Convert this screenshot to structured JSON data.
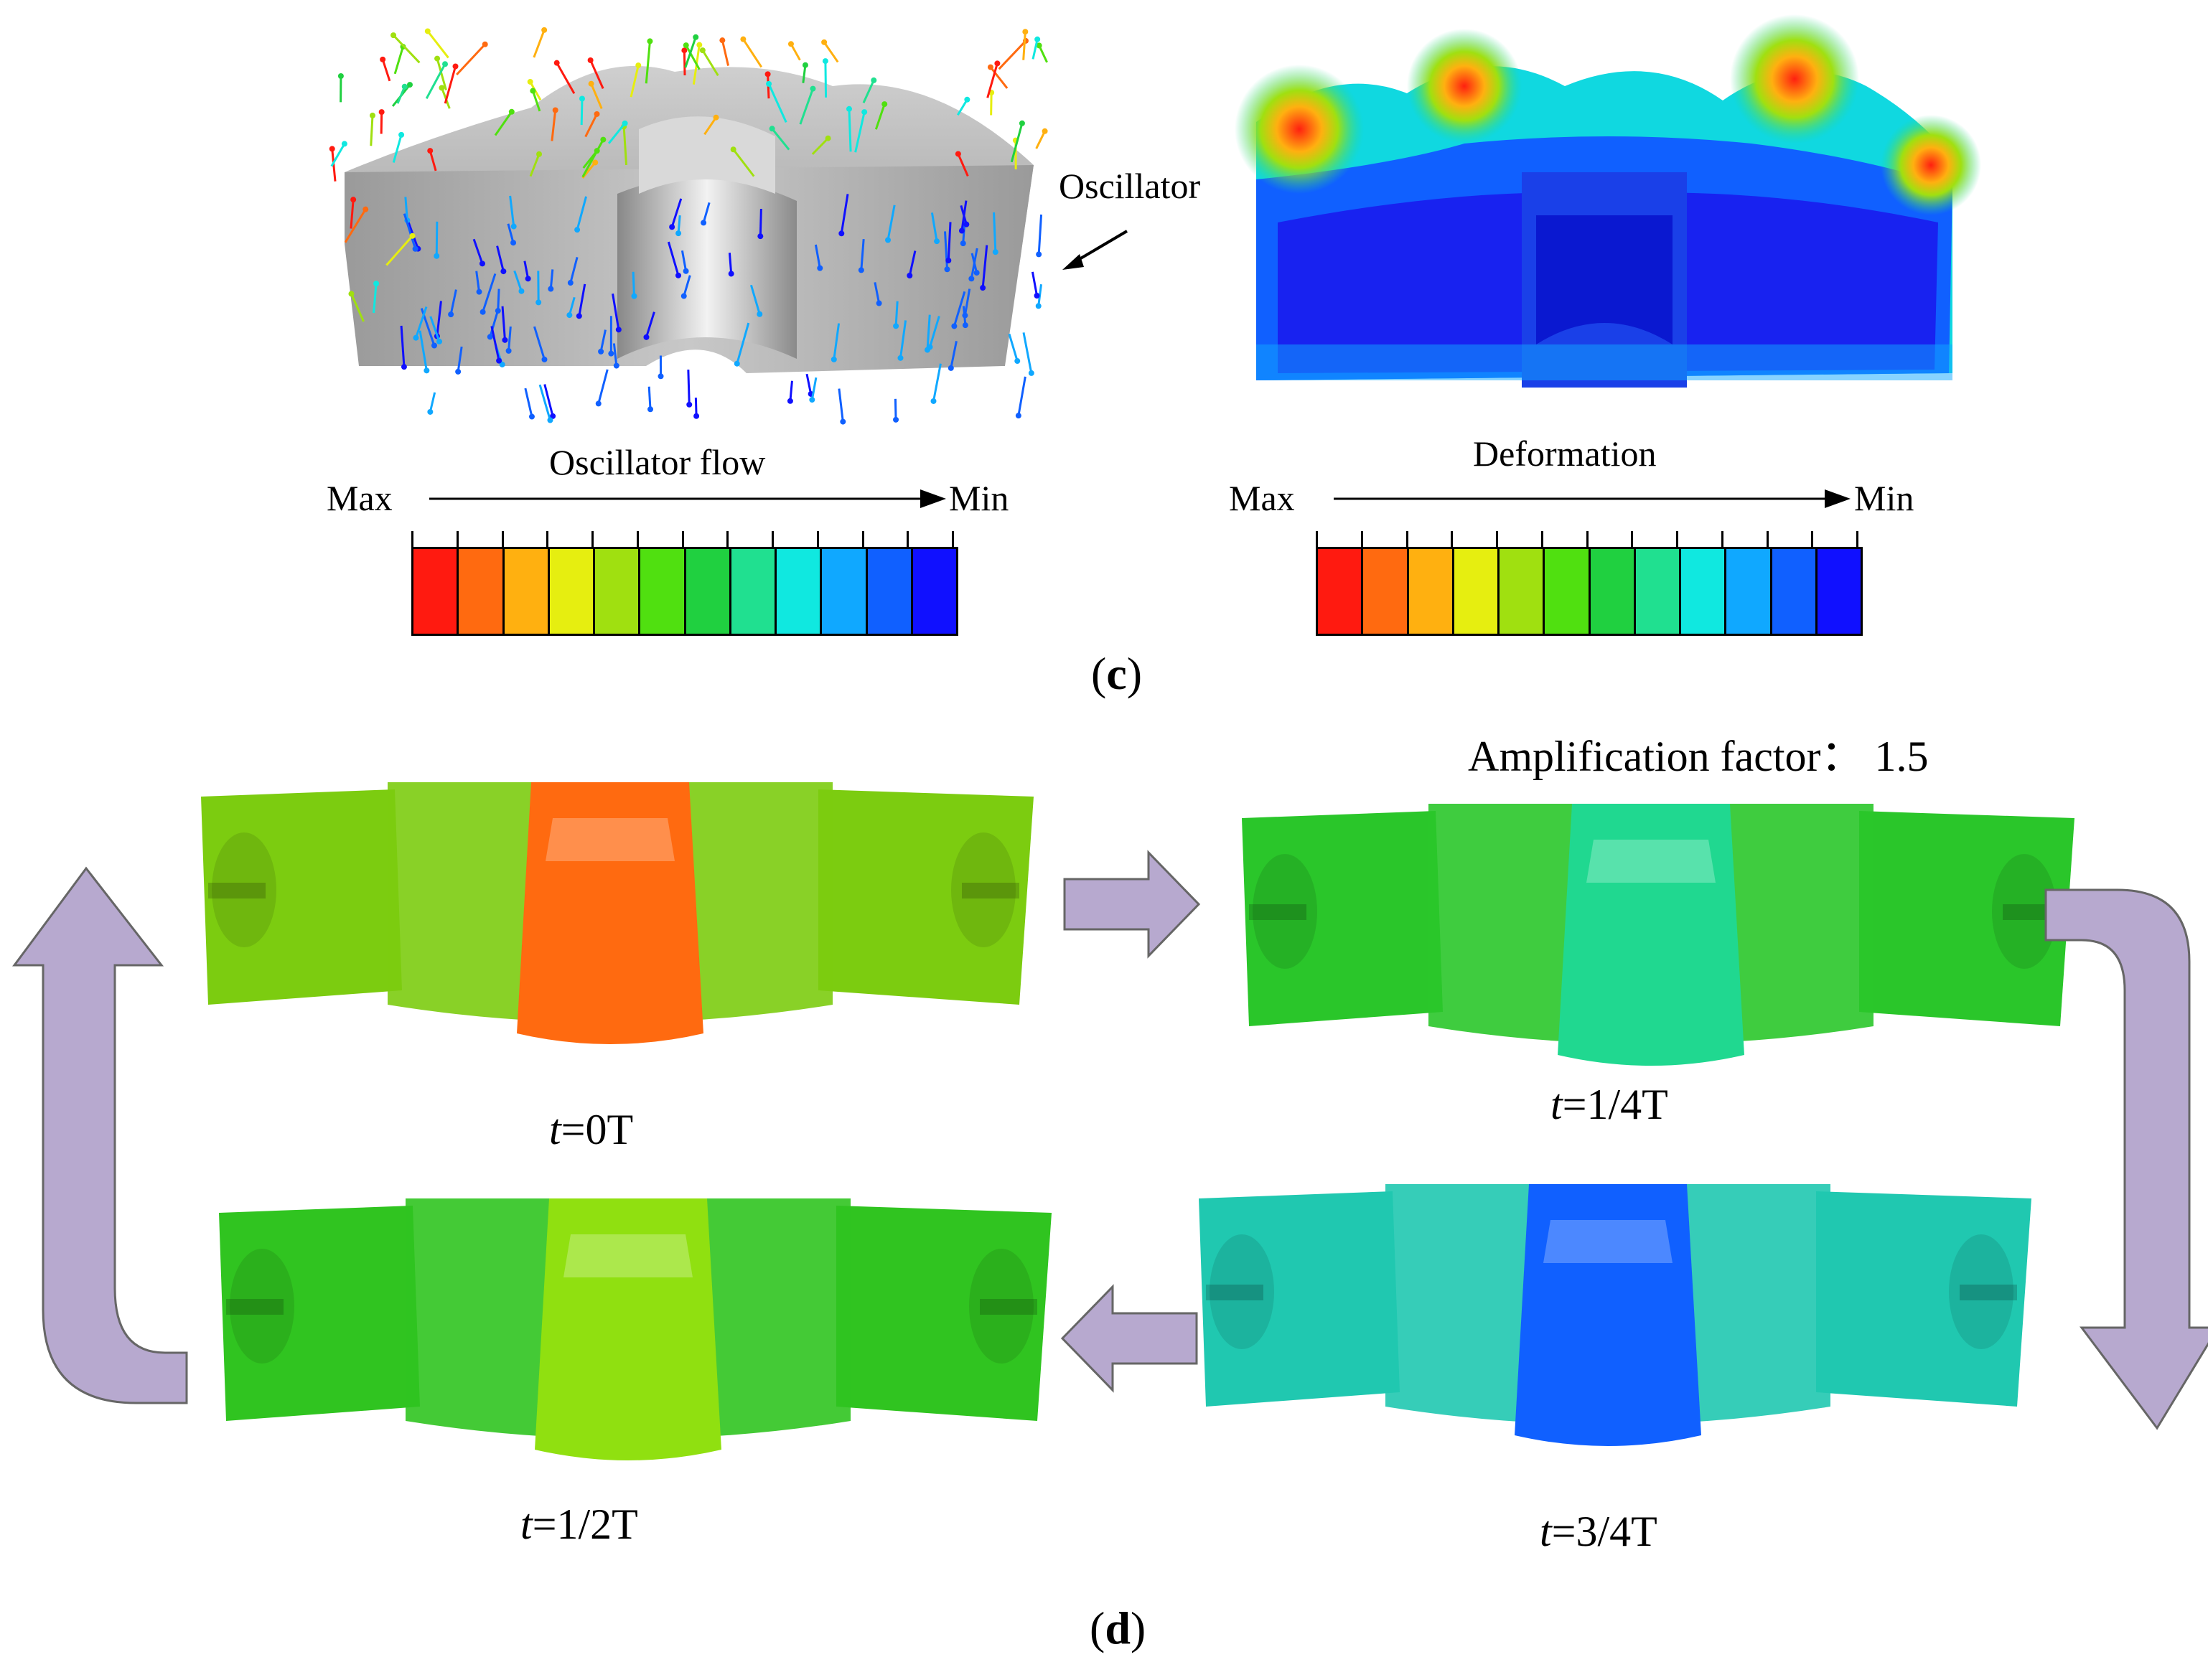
{
  "panel_c": {
    "label": "c",
    "oscillator_annotation": "Oscillator",
    "flow_bar": {
      "title": "Oscillator flow",
      "max_label": "Max",
      "min_label": "Min",
      "colors": [
        "#ff1a10",
        "#ff6a10",
        "#ffb010",
        "#e6ee10",
        "#a0e010",
        "#50e010",
        "#20d040",
        "#20e090",
        "#10e8e0",
        "#10a8ff",
        "#1060ff",
        "#1010ff"
      ]
    },
    "deformation_bar": {
      "title": "Deformation",
      "max_label": "Max",
      "min_label": "Min",
      "colors": [
        "#ff1a10",
        "#ff6a10",
        "#ffb010",
        "#e6ee10",
        "#a0e010",
        "#50e010",
        "#20d040",
        "#20e090",
        "#10e8e0",
        "#10a8ff",
        "#1060ff",
        "#1010ff"
      ]
    }
  },
  "panel_d": {
    "label": "d",
    "amplification": "Amplification factor： 1.5",
    "states": [
      {
        "t": "t",
        "rest": "=0T",
        "color": "#7ccc10",
        "accent": "#ff6a10"
      },
      {
        "t": "t",
        "rest": "=1/4T",
        "color": "#2ac62a",
        "accent": "#20d890"
      },
      {
        "t": "t",
        "rest": "=1/2T",
        "color": "#30c420",
        "accent": "#90e010"
      },
      {
        "t": "t",
        "rest": "=3/4T",
        "color": "#20c8b0",
        "accent": "#1060ff"
      }
    ],
    "arrow_color": "#b7a9cf"
  }
}
